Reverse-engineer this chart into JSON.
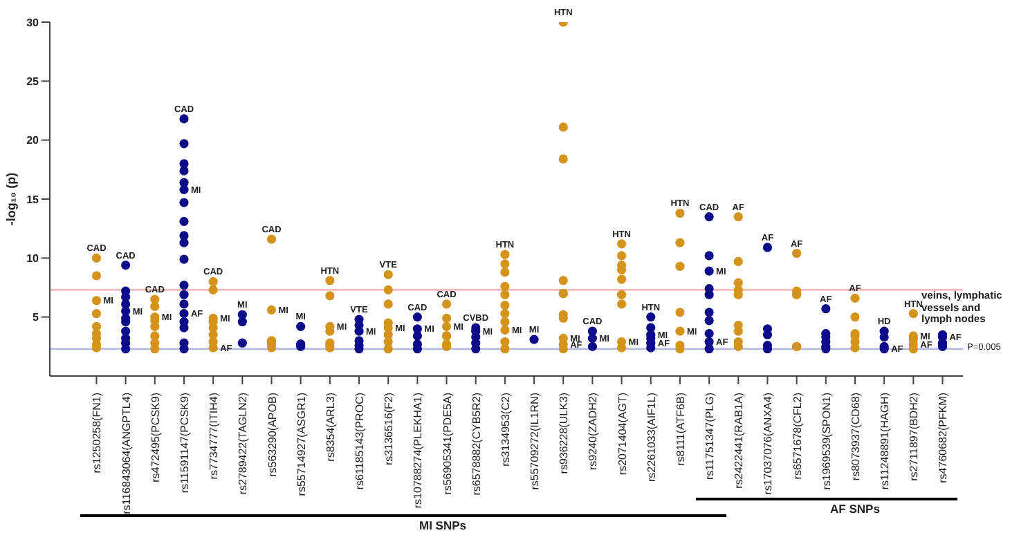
{
  "chart_data": {
    "type": "scatter",
    "ylabel": "-log₁₀ (p)",
    "marker": "circle",
    "ylim": [
      0,
      30
    ],
    "yticks": [
      5,
      10,
      15,
      20,
      25,
      30
    ],
    "categories": [
      "rs1250258(FN1)",
      "rs116843064(ANGPTL4)",
      "rs472495(PCSK9)",
      "rs11591147(PCSK9)",
      "rs7734777(ITIH4)",
      "rs2789422(TAGLN2)",
      "rs563290(APOB)",
      "rs55714927(ASGR1)",
      "rs8354(ARL3)",
      "rs61185143(PROC)",
      "rs3136516(F2)",
      "rs10788274(PLEKHA1)",
      "rs56905341(PDE5A)",
      "rs6578882(CYB5R2)",
      "rs3134953(C2)",
      "rs55709272(IL1RN)",
      "rs936228(ULK3)",
      "rs9240(ZADH2)",
      "rs2071404(AGT)",
      "rs2261033(AIF1L)",
      "rs8111(ATF6B)",
      "rs11751347(PLG)",
      "rs2422441(RAB1A)",
      "rs17037076(ANXA4)",
      "rs6571678(CFL2)",
      "rs1969539(SPON1)",
      "rs8073937(CD68)",
      "rs11248891(HAGH)",
      "rs2711897(BDH2)",
      "rs4760682(PFKM)"
    ],
    "series": [
      {
        "color": "#d4941c",
        "x": [
          "rs1250258(FN1)",
          "rs1250258(FN1)",
          "rs1250258(FN1)",
          "rs1250258(FN1)",
          "rs1250258(FN1)",
          "rs1250258(FN1)",
          "rs1250258(FN1)",
          "rs1250258(FN1)",
          "rs1250258(FN1)",
          "rs472495(PCSK9)",
          "rs472495(PCSK9)",
          "rs472495(PCSK9)",
          "rs472495(PCSK9)",
          "rs472495(PCSK9)",
          "rs472495(PCSK9)",
          "rs472495(PCSK9)",
          "rs472495(PCSK9)",
          "rs7734777(ITIH4)",
          "rs7734777(ITIH4)",
          "rs7734777(ITIH4)",
          "rs7734777(ITIH4)",
          "rs7734777(ITIH4)",
          "rs7734777(ITIH4)",
          "rs7734777(ITIH4)",
          "rs7734777(ITIH4)",
          "rs563290(APOB)",
          "rs563290(APOB)",
          "rs563290(APOB)",
          "rs563290(APOB)",
          "rs563290(APOB)",
          "rs563290(APOB)",
          "rs8354(ARL3)",
          "rs8354(ARL3)",
          "rs8354(ARL3)",
          "rs8354(ARL3)",
          "rs8354(ARL3)",
          "rs8354(ARL3)",
          "rs8354(ARL3)",
          "rs3136516(F2)",
          "rs3136516(F2)",
          "rs3136516(F2)",
          "rs3136516(F2)",
          "rs3136516(F2)",
          "rs3136516(F2)",
          "rs3136516(F2)",
          "rs3136516(F2)",
          "rs56905341(PDE5A)",
          "rs56905341(PDE5A)",
          "rs56905341(PDE5A)",
          "rs56905341(PDE5A)",
          "rs56905341(PDE5A)",
          "rs56905341(PDE5A)",
          "rs56905341(PDE5A)",
          "rs3134953(C2)",
          "rs3134953(C2)",
          "rs3134953(C2)",
          "rs3134953(C2)",
          "rs3134953(C2)",
          "rs3134953(C2)",
          "rs3134953(C2)",
          "rs3134953(C2)",
          "rs3134953(C2)",
          "rs3134953(C2)",
          "rs3134953(C2)",
          "rs936228(ULK3)",
          "rs936228(ULK3)",
          "rs936228(ULK3)",
          "rs936228(ULK3)",
          "rs936228(ULK3)",
          "rs936228(ULK3)",
          "rs936228(ULK3)",
          "rs936228(ULK3)",
          "rs936228(ULK3)",
          "rs936228(ULK3)",
          "rs936228(ULK3)",
          "rs2071404(AGT)",
          "rs2071404(AGT)",
          "rs2071404(AGT)",
          "rs2071404(AGT)",
          "rs2071404(AGT)",
          "rs2071404(AGT)",
          "rs2071404(AGT)",
          "rs2071404(AGT)",
          "rs2071404(AGT)",
          "rs8111(ATF6B)",
          "rs8111(ATF6B)",
          "rs8111(ATF6B)",
          "rs8111(ATF6B)",
          "rs8111(ATF6B)",
          "rs8111(ATF6B)",
          "rs8111(ATF6B)",
          "rs2422441(RAB1A)",
          "rs2422441(RAB1A)",
          "rs2422441(RAB1A)",
          "rs2422441(RAB1A)",
          "rs2422441(RAB1A)",
          "rs2422441(RAB1A)",
          "rs2422441(RAB1A)",
          "rs2422441(RAB1A)",
          "rs2422441(RAB1A)",
          "rs6571678(CFL2)",
          "rs6571678(CFL2)",
          "rs6571678(CFL2)",
          "rs6571678(CFL2)",
          "rs6571678(CFL2)",
          "rs8073937(CD68)",
          "rs8073937(CD68)",
          "rs8073937(CD68)",
          "rs8073937(CD68)",
          "rs8073937(CD68)",
          "rs8073937(CD68)",
          "rs2711897(BDH2)",
          "rs2711897(BDH2)",
          "rs2711897(BDH2)",
          "rs2711897(BDH2)",
          "rs2711897(BDH2)"
        ],
        "values": [
          10.0,
          8.5,
          6.4,
          5.3,
          4.2,
          3.6,
          3.2,
          2.7,
          2.4,
          6.5,
          5.9,
          5.0,
          4.7,
          4.2,
          3.4,
          2.8,
          2.3,
          8.0,
          7.3,
          4.9,
          4.6,
          4.1,
          3.5,
          2.9,
          2.4,
          11.6,
          5.6,
          3.0,
          2.9,
          2.7,
          2.4,
          8.1,
          6.8,
          4.2,
          3.8,
          2.8,
          2.6,
          2.4,
          8.6,
          7.3,
          6.1,
          4.5,
          4.1,
          3.5,
          2.9,
          2.3,
          6.1,
          4.9,
          4.2,
          3.4,
          3.4,
          2.7,
          2.5,
          10.3,
          9.5,
          8.8,
          7.6,
          6.9,
          6.0,
          5.3,
          4.6,
          3.9,
          2.9,
          2.3,
          30.0,
          21.1,
          18.4,
          8.1,
          7.0,
          7.0,
          5.2,
          4.9,
          3.2,
          2.7,
          2.3,
          11.2,
          10.2,
          9.4,
          9.0,
          8.2,
          6.9,
          6.1,
          2.9,
          2.4,
          13.8,
          11.3,
          9.3,
          5.4,
          3.8,
          2.6,
          2.3,
          13.5,
          9.7,
          7.9,
          7.3,
          6.9,
          4.3,
          3.8,
          2.9,
          2.5,
          10.4,
          7.2,
          6.9,
          2.5,
          2.5,
          6.6,
          5.0,
          3.6,
          3.4,
          2.9,
          2.4,
          5.3,
          3.4,
          3.1,
          2.7,
          2.3
        ]
      },
      {
        "color": "#0c0c8a",
        "x": [
          "rs116843064(ANGPTL4)",
          "rs116843064(ANGPTL4)",
          "rs116843064(ANGPTL4)",
          "rs116843064(ANGPTL4)",
          "rs116843064(ANGPTL4)",
          "rs116843064(ANGPTL4)",
          "rs116843064(ANGPTL4)",
          "rs116843064(ANGPTL4)",
          "rs116843064(ANGPTL4)",
          "rs116843064(ANGPTL4)",
          "rs116843064(ANGPTL4)",
          "rs11591147(PCSK9)",
          "rs11591147(PCSK9)",
          "rs11591147(PCSK9)",
          "rs11591147(PCSK9)",
          "rs11591147(PCSK9)",
          "rs11591147(PCSK9)",
          "rs11591147(PCSK9)",
          "rs11591147(PCSK9)",
          "rs11591147(PCSK9)",
          "rs11591147(PCSK9)",
          "rs11591147(PCSK9)",
          "rs11591147(PCSK9)",
          "rs11591147(PCSK9)",
          "rs11591147(PCSK9)",
          "rs11591147(PCSK9)",
          "rs11591147(PCSK9)",
          "rs11591147(PCSK9)",
          "rs11591147(PCSK9)",
          "rs11591147(PCSK9)",
          "rs2789422(TAGLN2)",
          "rs2789422(TAGLN2)",
          "rs2789422(TAGLN2)",
          "rs55714927(ASGR1)",
          "rs55714927(ASGR1)",
          "rs55714927(ASGR1)",
          "rs55714927(ASGR1)",
          "rs61185143(PROC)",
          "rs61185143(PROC)",
          "rs61185143(PROC)",
          "rs61185143(PROC)",
          "rs61185143(PROC)",
          "rs61185143(PROC)",
          "rs10788274(PLEKHA1)",
          "rs10788274(PLEKHA1)",
          "rs10788274(PLEKHA1)",
          "rs10788274(PLEKHA1)",
          "rs10788274(PLEKHA1)",
          "rs6578882(CYB5R2)",
          "rs6578882(CYB5R2)",
          "rs6578882(CYB5R2)",
          "rs6578882(CYB5R2)",
          "rs6578882(CYB5R2)",
          "rs55709272(IL1RN)",
          "rs9240(ZADH2)",
          "rs9240(ZADH2)",
          "rs9240(ZADH2)",
          "rs2261033(AIF1L)",
          "rs2261033(AIF1L)",
          "rs2261033(AIF1L)",
          "rs2261033(AIF1L)",
          "rs2261033(AIF1L)",
          "rs2261033(AIF1L)",
          "rs11751347(PLG)",
          "rs11751347(PLG)",
          "rs11751347(PLG)",
          "rs11751347(PLG)",
          "rs11751347(PLG)",
          "rs11751347(PLG)",
          "rs11751347(PLG)",
          "rs11751347(PLG)",
          "rs11751347(PLG)",
          "rs11751347(PLG)",
          "rs17037076(ANXA4)",
          "rs17037076(ANXA4)",
          "rs17037076(ANXA4)",
          "rs17037076(ANXA4)",
          "rs17037076(ANXA4)",
          "rs1969539(SPON1)",
          "rs1969539(SPON1)",
          "rs1969539(SPON1)",
          "rs1969539(SPON1)",
          "rs1969539(SPON1)",
          "rs1969539(SPON1)",
          "rs11248891(HAGH)",
          "rs11248891(HAGH)",
          "rs11248891(HAGH)",
          "rs11248891(HAGH)",
          "rs4760682(PFKM)",
          "rs4760682(PFKM)",
          "rs4760682(PFKM)",
          "rs4760682(PFKM)",
          "rs4760682(PFKM)"
        ],
        "values": [
          9.4,
          7.2,
          6.7,
          6.1,
          5.5,
          4.9,
          4.6,
          3.8,
          3.2,
          2.8,
          2.3,
          21.8,
          19.7,
          18.0,
          17.4,
          16.4,
          15.8,
          14.7,
          13.1,
          11.9,
          11.3,
          9.9,
          7.7,
          6.9,
          6.1,
          5.3,
          4.6,
          4.1,
          2.8,
          2.3,
          5.2,
          4.6,
          2.8,
          4.2,
          2.7,
          2.7,
          2.5,
          4.8,
          4.3,
          3.8,
          3.0,
          2.6,
          2.3,
          5.0,
          4.0,
          3.4,
          2.7,
          2.3,
          4.1,
          3.8,
          3.3,
          2.8,
          2.3,
          3.1,
          3.8,
          3.2,
          2.5,
          5.0,
          4.1,
          3.5,
          3.2,
          2.8,
          2.4,
          13.5,
          10.2,
          8.9,
          7.4,
          6.9,
          5.4,
          4.7,
          3.6,
          2.9,
          2.3,
          10.9,
          4.0,
          3.5,
          2.6,
          2.3,
          5.7,
          3.6,
          3.3,
          2.9,
          2.5,
          2.3,
          3.8,
          3.3,
          2.5,
          2.3,
          3.5,
          3.3,
          2.8,
          2.8,
          2.5
        ]
      }
    ],
    "ref_lines": [
      {
        "axis": "y",
        "value": 7.3,
        "color": "#f0a8a8"
      },
      {
        "axis": "y",
        "value": 2.301,
        "color": "#b8b8e8"
      }
    ],
    "annotations": [
      "veins, lymphatic vessels and lymph nodes",
      "MI SNPs",
      "AF SNPs",
      "P=0.005",
      {
        "text": "CAD",
        "x": "rs1250258(FN1)",
        "y": 10.0
      },
      {
        "text": "MI",
        "x": "rs1250258(FN1)",
        "y": 6.4
      },
      {
        "text": "CAD",
        "x": "rs116843064(ANGPTL4)",
        "y": 9.4
      },
      {
        "text": "MI",
        "x": "rs116843064(ANGPTL4)",
        "y": 5.5
      },
      {
        "text": "CAD",
        "x": "rs472495(PCSK9)",
        "y": 6.5
      },
      {
        "text": "MI",
        "x": "rs472495(PCSK9)",
        "y": 5.0
      },
      {
        "text": "CAD",
        "x": "rs11591147(PCSK9)",
        "y": 21.8
      },
      {
        "text": "MI",
        "x": "rs11591147(PCSK9)",
        "y": 15.8
      },
      {
        "text": "AF",
        "x": "rs11591147(PCSK9)",
        "y": 5.3
      },
      {
        "text": "CAD",
        "x": "rs7734777(ITIH4)",
        "y": 8.0
      },
      {
        "text": "MI",
        "x": "rs7734777(ITIH4)",
        "y": 4.9
      },
      {
        "text": "AF",
        "x": "rs7734777(ITIH4)",
        "y": 2.4
      },
      {
        "text": "MI",
        "x": "rs2789422(TAGLN2)",
        "y": 5.2
      },
      {
        "text": "CAD",
        "x": "rs563290(APOB)",
        "y": 11.6
      },
      {
        "text": "MI",
        "x": "rs563290(APOB)",
        "y": 5.6
      },
      {
        "text": "MI",
        "x": "rs55714927(ASGR1)",
        "y": 4.2
      },
      {
        "text": "HTN",
        "x": "rs8354(ARL3)",
        "y": 8.1
      },
      {
        "text": "MI",
        "x": "rs8354(ARL3)",
        "y": 4.2
      },
      {
        "text": "VTE",
        "x": "rs61185143(PROC)",
        "y": 4.8
      },
      {
        "text": "MI",
        "x": "rs61185143(PROC)",
        "y": 3.8
      },
      {
        "text": "VTE",
        "x": "rs3136516(F2)",
        "y": 8.6
      },
      {
        "text": "MI",
        "x": "rs3136516(F2)",
        "y": 4.1
      },
      {
        "text": "CAD",
        "x": "rs10788274(PLEKHA1)",
        "y": 5.0
      },
      {
        "text": "MI",
        "x": "rs10788274(PLEKHA1)",
        "y": 4.0
      },
      {
        "text": "CAD",
        "x": "rs56905341(PDE5A)",
        "y": 6.1
      },
      {
        "text": "MI",
        "x": "rs56905341(PDE5A)",
        "y": 4.2
      },
      {
        "text": "CVBD",
        "x": "rs6578882(CYB5R2)",
        "y": 4.1
      },
      {
        "text": "MI",
        "x": "rs6578882(CYB5R2)",
        "y": 3.8
      },
      {
        "text": "HTN",
        "x": "rs3134953(C2)",
        "y": 10.3
      },
      {
        "text": "MI",
        "x": "rs3134953(C2)",
        "y": 3.9
      },
      {
        "text": "MI",
        "x": "rs55709272(IL1RN)",
        "y": 3.1
      },
      {
        "text": "HTN",
        "x": "rs936228(ULK3)",
        "y": 30.0
      },
      {
        "text": "MI",
        "x": "rs936228(ULK3)",
        "y": 3.2
      },
      {
        "text": "AF",
        "x": "rs936228(ULK3)",
        "y": 2.7
      },
      {
        "text": "CAD",
        "x": "rs9240(ZADH2)",
        "y": 3.8
      },
      {
        "text": "MI",
        "x": "rs9240(ZADH2)",
        "y": 3.2
      },
      {
        "text": "HTN",
        "x": "rs2071404(AGT)",
        "y": 11.2
      },
      {
        "text": "MI",
        "x": "rs2071404(AGT)",
        "y": 2.9
      },
      {
        "text": "HTN",
        "x": "rs2261033(AIF1L)",
        "y": 5.0
      },
      {
        "text": "MI",
        "x": "rs2261033(AIF1L)",
        "y": 3.5
      },
      {
        "text": "AF",
        "x": "rs2261033(AIF1L)",
        "y": 2.8
      },
      {
        "text": "HTN",
        "x": "rs8111(ATF6B)",
        "y": 13.8
      },
      {
        "text": "MI",
        "x": "rs8111(ATF6B)",
        "y": 3.8
      },
      {
        "text": "CAD",
        "x": "rs11751347(PLG)",
        "y": 13.5
      },
      {
        "text": "MI",
        "x": "rs11751347(PLG)",
        "y": 8.9
      },
      {
        "text": "AF",
        "x": "rs11751347(PLG)",
        "y": 2.9
      },
      {
        "text": "AF",
        "x": "rs2422441(RAB1A)",
        "y": 13.5
      },
      {
        "text": "AF",
        "x": "rs17037076(ANXA4)",
        "y": 10.9
      },
      {
        "text": "AF",
        "x": "rs6571678(CFL2)",
        "y": 10.4
      },
      {
        "text": "AF",
        "x": "rs1969539(SPON1)",
        "y": 5.7
      },
      {
        "text": "AF",
        "x": "rs8073937(CD68)",
        "y": 6.6
      },
      {
        "text": "HD",
        "x": "rs11248891(HAGH)",
        "y": 3.8
      },
      {
        "text": "AF",
        "x": "rs11248891(HAGH)",
        "y": 2.3
      },
      {
        "text": "HTN",
        "x": "rs2711897(BDH2)",
        "y": 5.3
      },
      {
        "text": "MI",
        "x": "rs2711897(BDH2)",
        "y": 3.4
      },
      {
        "text": "AF",
        "x": "rs2711897(BDH2)",
        "y": 2.7
      },
      {
        "text": "AF",
        "x": "rs4760682(PFKM)",
        "y": 3.3
      }
    ]
  }
}
